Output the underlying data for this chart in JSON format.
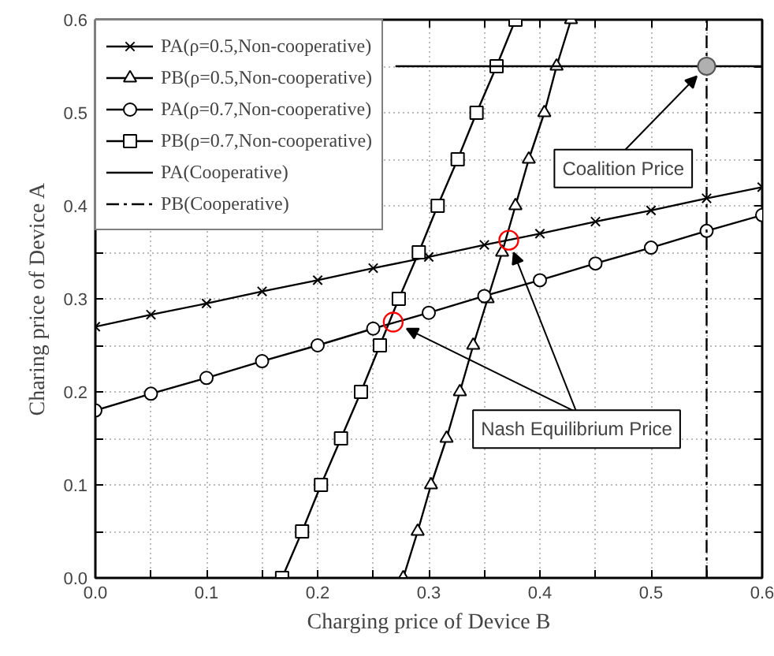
{
  "chart_data": {
    "type": "line",
    "xlabel": "Charging price of Device B",
    "ylabel": "Charing price of Device A",
    "xlim": [
      0,
      0.6
    ],
    "ylim": [
      0,
      0.6
    ],
    "xticks": [
      {
        "value": 0,
        "label": "0.0"
      },
      {
        "value": 0.05,
        "label": null
      },
      0.1,
      {
        "value": 0.15,
        "label": null
      },
      0.2,
      {
        "value": 0.25,
        "label": null
      },
      0.3,
      {
        "value": 0.35,
        "label": null
      },
      0.4,
      {
        "value": 0.45,
        "label": null
      },
      0.5,
      {
        "value": 0.55,
        "label": null
      },
      0.6
    ],
    "yticks": [
      {
        "value": 0,
        "label": "0.0"
      },
      {
        "value": 0.05,
        "label": null
      },
      0.1,
      {
        "value": 0.15,
        "label": null
      },
      0.2,
      {
        "value": 0.25,
        "label": null
      },
      0.3,
      {
        "value": 0.35,
        "label": null
      },
      0.4,
      {
        "value": 0.45,
        "label": null
      },
      0.5,
      {
        "value": 0.55,
        "label": null
      },
      0.6
    ],
    "grid": true,
    "legend": "top left",
    "series": [
      {
        "name": "PA(ρ=0.5,Non-cooperative)",
        "color": "#000000",
        "marker": "cross",
        "line_style": "solid",
        "x": [
          0,
          0.05,
          0.1,
          0.15,
          0.2,
          0.25,
          0.3,
          0.35,
          0.4,
          0.45,
          0.5,
          0.55,
          0.6
        ],
        "values": [
          0.27,
          0.283,
          0.295,
          0.308,
          0.32,
          0.333,
          0.345,
          0.358,
          0.37,
          0.383,
          0.395,
          0.408,
          0.42
        ]
      },
      {
        "name": "PB(ρ=0.5,Non-cooperative)",
        "color": "#000000",
        "marker": "triangle",
        "line_style": "solid",
        "x": [
          0.277,
          0.29,
          0.302,
          0.316,
          0.328,
          0.34,
          0.353,
          0.366,
          0.378,
          0.39,
          0.404,
          0.415,
          0.428
        ],
        "values": [
          0,
          0.05,
          0.1,
          0.15,
          0.2,
          0.25,
          0.3,
          0.35,
          0.4,
          0.45,
          0.5,
          0.55,
          0.6
        ]
      },
      {
        "name": "PA(ρ=0.7,Non-cooperative)",
        "color": "#000000",
        "marker": "circle",
        "line_style": "solid",
        "x": [
          0,
          0.05,
          0.1,
          0.15,
          0.2,
          0.25,
          0.3,
          0.35,
          0.4,
          0.45,
          0.5,
          0.55,
          0.6
        ],
        "values": [
          0.18,
          0.198,
          0.215,
          0.233,
          0.25,
          0.268,
          0.285,
          0.303,
          0.32,
          0.338,
          0.355,
          0.373,
          0.39
        ]
      },
      {
        "name": "PB(ρ=0.7,Non-cooperative)",
        "color": "#000000",
        "marker": "square",
        "line_style": "solid",
        "x": [
          0.168,
          0.186,
          0.203,
          0.221,
          0.239,
          0.256,
          0.273,
          0.291,
          0.308,
          0.326,
          0.343,
          0.361,
          0.378
        ],
        "values": [
          0,
          0.05,
          0.1,
          0.15,
          0.2,
          0.25,
          0.3,
          0.35,
          0.4,
          0.45,
          0.5,
          0.55,
          0.6
        ]
      },
      {
        "name": "PA(Cooperative)",
        "color": "#000000",
        "marker": "none",
        "line_style": "solid",
        "x": [
          0.27,
          0.6
        ],
        "values": [
          0.55,
          0.55
        ]
      },
      {
        "name": "PB(Cooperative)",
        "color": "#000000",
        "marker": "none",
        "line_style": "dashdot",
        "x": [
          0.55,
          0.55
        ],
        "values": [
          0,
          0.6
        ]
      },
      {
        "type": "scatter",
        "color": "#b0b0b0",
        "marker": "circle",
        "x": [
          0.55
        ],
        "values": [
          0.55
        ]
      },
      {
        "type": "scatter",
        "color": "#ff0000",
        "marker": "circle",
        "x": [
          0.268,
          0.372
        ],
        "values": [
          0.275,
          0.363
        ]
      }
    ],
    "annotations": [
      {
        "text": "Coalition Price",
        "x": 0.55,
        "y": 0.55
      },
      {
        "text": "Nash Equilibrium Price",
        "x": 0.372,
        "y": 0.363
      }
    ]
  }
}
